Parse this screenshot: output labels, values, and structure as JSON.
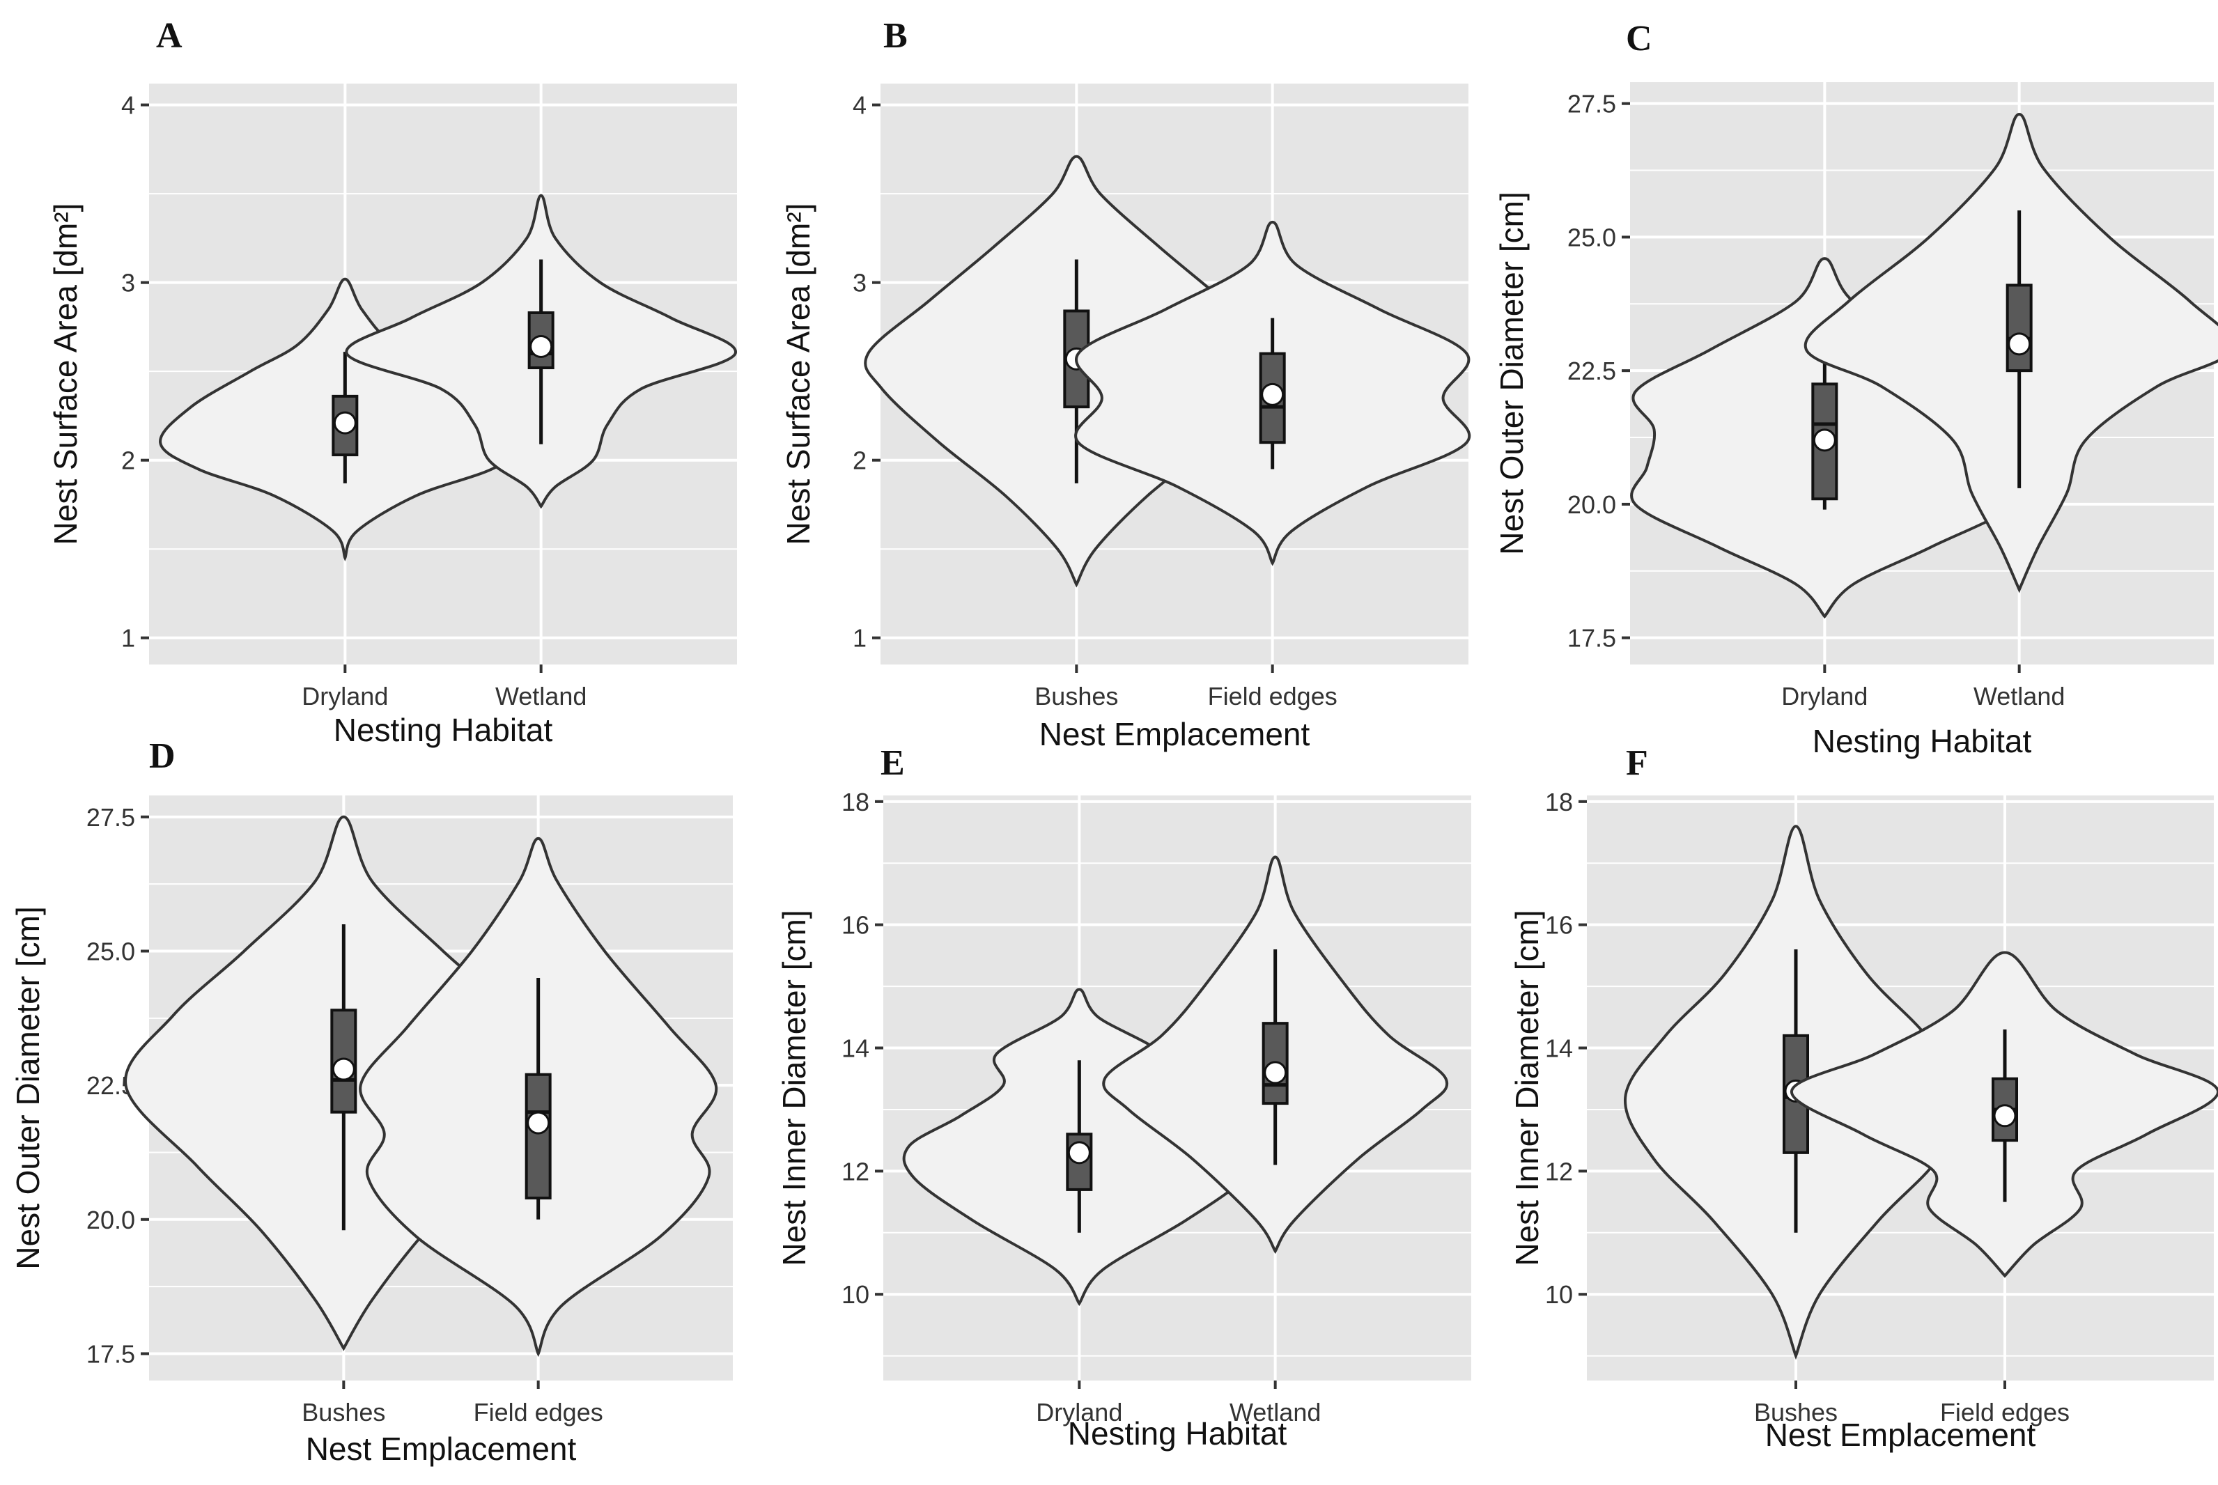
{
  "figure": {
    "panels": [
      "A",
      "B",
      "C",
      "D",
      "E",
      "F"
    ]
  },
  "colors": {
    "panel_bg": "#e5e5e5",
    "grid": "#ffffff",
    "violin_fill": "#f2f2f2",
    "violin_stroke": "#333333",
    "box_fill": "#595959",
    "box_stroke": "#111111",
    "mean_point": "#ffffff"
  },
  "chart_data": [
    {
      "type": "violin",
      "panel": "A",
      "xlabel": "Nesting Habitat",
      "ylabel": "Nest Surface Area [dm²]",
      "ylim": [
        0.85,
        4.12
      ],
      "yticks": [
        "1",
        "2",
        "3",
        "4"
      ],
      "categories": [
        "Dryland",
        "Wetland"
      ],
      "groups": [
        {
          "name": "Dryland",
          "min": 1.87,
          "q1": 2.03,
          "median": 2.2,
          "q3": 2.36,
          "max": 2.61,
          "mean": 2.21,
          "violin_min": 1.45,
          "violin_max": 3.02,
          "density": [
            [
              1.45,
              0.0
            ],
            [
              1.6,
              0.05
            ],
            [
              1.8,
              0.3
            ],
            [
              1.95,
              0.62
            ],
            [
              2.1,
              0.78
            ],
            [
              2.3,
              0.65
            ],
            [
              2.5,
              0.4
            ],
            [
              2.65,
              0.2
            ],
            [
              2.85,
              0.07
            ],
            [
              3.02,
              0.0
            ]
          ]
        },
        {
          "name": "Wetland",
          "min": 2.09,
          "q1": 2.52,
          "median": 2.6,
          "q3": 2.83,
          "max": 3.13,
          "mean": 2.64,
          "violin_min": 1.74,
          "violin_max": 3.49,
          "density": [
            [
              1.74,
              0.0
            ],
            [
              1.85,
              0.06
            ],
            [
              2.0,
              0.22
            ],
            [
              2.2,
              0.28
            ],
            [
              2.4,
              0.42
            ],
            [
              2.6,
              0.82
            ],
            [
              2.8,
              0.55
            ],
            [
              3.0,
              0.25
            ],
            [
              3.25,
              0.06
            ],
            [
              3.49,
              0.0
            ]
          ]
        }
      ]
    },
    {
      "type": "violin",
      "panel": "B",
      "xlabel": "Nest Emplacement",
      "ylabel": "Nest Surface Area [dm²]",
      "ylim": [
        0.85,
        4.12
      ],
      "yticks": [
        "1",
        "2",
        "3",
        "4"
      ],
      "categories": [
        "Bushes",
        "Field edges"
      ],
      "groups": [
        {
          "name": "Bushes",
          "min": 1.87,
          "q1": 2.3,
          "median": 2.55,
          "q3": 2.84,
          "max": 3.13,
          "mean": 2.57,
          "violin_min": 1.3,
          "violin_max": 3.71,
          "density": [
            [
              1.3,
              0.0
            ],
            [
              1.5,
              0.08
            ],
            [
              1.8,
              0.3
            ],
            [
              2.1,
              0.58
            ],
            [
              2.4,
              0.82
            ],
            [
              2.6,
              0.88
            ],
            [
              2.9,
              0.62
            ],
            [
              3.2,
              0.35
            ],
            [
              3.5,
              0.1
            ],
            [
              3.71,
              0.0
            ]
          ]
        },
        {
          "name": "Field edges",
          "min": 1.95,
          "q1": 2.1,
          "median": 2.3,
          "q3": 2.6,
          "max": 2.8,
          "mean": 2.37,
          "violin_min": 1.42,
          "violin_max": 3.34,
          "density": [
            [
              1.42,
              0.0
            ],
            [
              1.6,
              0.08
            ],
            [
              1.85,
              0.4
            ],
            [
              2.1,
              0.82
            ],
            [
              2.35,
              0.72
            ],
            [
              2.6,
              0.82
            ],
            [
              2.85,
              0.45
            ],
            [
              3.1,
              0.1
            ],
            [
              3.34,
              0.0
            ]
          ]
        }
      ]
    },
    {
      "type": "violin",
      "panel": "C",
      "xlabel": "Nesting Habitat",
      "ylabel": "Nest Outer Diameter [cm]",
      "ylim": [
        17.0,
        27.9
      ],
      "yticks": [
        "17.5",
        "20.0",
        "22.5",
        "25.0",
        "27.5"
      ],
      "categories": [
        "Dryland",
        "Wetland"
      ],
      "groups": [
        {
          "name": "Dryland",
          "min": 19.9,
          "q1": 20.1,
          "median": 21.5,
          "q3": 22.25,
          "max": 22.7,
          "mean": 21.2,
          "violin_min": 17.9,
          "violin_max": 24.6,
          "density": [
            [
              17.9,
              0.0
            ],
            [
              18.5,
              0.12
            ],
            [
              19.2,
              0.45
            ],
            [
              20.0,
              0.8
            ],
            [
              20.7,
              0.75
            ],
            [
              21.4,
              0.72
            ],
            [
              22.1,
              0.8
            ],
            [
              22.9,
              0.48
            ],
            [
              23.8,
              0.12
            ],
            [
              24.6,
              0.0
            ]
          ]
        },
        {
          "name": "Wetland",
          "min": 20.3,
          "q1": 22.5,
          "median": 23.1,
          "q3": 24.1,
          "max": 25.5,
          "mean": 23.0,
          "violin_min": 18.4,
          "violin_max": 27.3,
          "density": [
            [
              18.4,
              0.0
            ],
            [
              19.2,
              0.08
            ],
            [
              20.2,
              0.2
            ],
            [
              21.2,
              0.28
            ],
            [
              22.2,
              0.58
            ],
            [
              22.9,
              0.9
            ],
            [
              23.8,
              0.72
            ],
            [
              25.0,
              0.38
            ],
            [
              26.3,
              0.1
            ],
            [
              27.3,
              0.0
            ]
          ]
        }
      ]
    },
    {
      "type": "violin",
      "panel": "D",
      "xlabel": "Nest Emplacement",
      "ylabel": "Nest Outer Diameter [cm]",
      "ylim": [
        17.0,
        27.9
      ],
      "yticks": [
        "17.5",
        "20.0",
        "22.5",
        "25.0",
        "27.5"
      ],
      "categories": [
        "Bushes",
        "Field edges"
      ],
      "groups": [
        {
          "name": "Bushes",
          "min": 19.8,
          "q1": 22.0,
          "median": 22.6,
          "q3": 23.9,
          "max": 25.5,
          "mean": 22.8,
          "violin_min": 17.6,
          "violin_max": 27.5,
          "density": [
            [
              17.6,
              0.0
            ],
            [
              18.5,
              0.12
            ],
            [
              19.8,
              0.35
            ],
            [
              21.0,
              0.62
            ],
            [
              22.5,
              0.92
            ],
            [
              23.8,
              0.72
            ],
            [
              25.0,
              0.42
            ],
            [
              26.3,
              0.12
            ],
            [
              27.5,
              0.0
            ]
          ]
        },
        {
          "name": "Field edges",
          "min": 20.0,
          "q1": 20.4,
          "median": 22.0,
          "q3": 22.7,
          "max": 24.5,
          "mean": 21.8,
          "violin_min": 17.5,
          "violin_max": 27.1,
          "density": [
            [
              17.5,
              0.0
            ],
            [
              18.4,
              0.1
            ],
            [
              19.7,
              0.52
            ],
            [
              20.8,
              0.72
            ],
            [
              21.6,
              0.65
            ],
            [
              22.5,
              0.75
            ],
            [
              23.6,
              0.55
            ],
            [
              25.0,
              0.28
            ],
            [
              26.3,
              0.08
            ],
            [
              27.1,
              0.0
            ]
          ]
        }
      ]
    },
    {
      "type": "violin",
      "panel": "E",
      "xlabel": "Nesting Habitat",
      "ylabel": "Nest Inner Diameter [cm]",
      "ylim": [
        8.6,
        18.1
      ],
      "yticks": [
        "10",
        "12",
        "14",
        "16",
        "18"
      ],
      "categories": [
        "Dryland",
        "Wetland"
      ],
      "groups": [
        {
          "name": "Dryland",
          "min": 11.0,
          "q1": 11.7,
          "median": 12.3,
          "q3": 12.6,
          "max": 13.8,
          "mean": 12.3,
          "violin_min": 9.85,
          "violin_max": 14.95,
          "density": [
            [
              9.85,
              0.0
            ],
            [
              10.4,
              0.1
            ],
            [
              11.2,
              0.45
            ],
            [
              11.9,
              0.7
            ],
            [
              12.4,
              0.72
            ],
            [
              12.9,
              0.5
            ],
            [
              13.4,
              0.32
            ],
            [
              13.9,
              0.35
            ],
            [
              14.5,
              0.08
            ],
            [
              14.95,
              0.0
            ]
          ]
        },
        {
          "name": "Wetland",
          "min": 12.1,
          "q1": 13.1,
          "median": 13.4,
          "q3": 14.4,
          "max": 15.6,
          "mean": 13.6,
          "violin_min": 10.7,
          "violin_max": 17.1,
          "density": [
            [
              10.7,
              0.0
            ],
            [
              11.2,
              0.08
            ],
            [
              12.2,
              0.35
            ],
            [
              13.0,
              0.62
            ],
            [
              13.5,
              0.72
            ],
            [
              14.2,
              0.48
            ],
            [
              15.0,
              0.3
            ],
            [
              16.2,
              0.08
            ],
            [
              17.1,
              0.0
            ]
          ]
        }
      ]
    },
    {
      "type": "violin",
      "panel": "F",
      "xlabel": "Nest Emplacement",
      "ylabel": "Nest Inner Diameter [cm]",
      "ylim": [
        8.6,
        18.1
      ],
      "yticks": [
        "10",
        "12",
        "14",
        "16",
        "18"
      ],
      "categories": [
        "Bushes",
        "Field edges"
      ],
      "groups": [
        {
          "name": "Bushes",
          "min": 11.0,
          "q1": 12.3,
          "median": 13.2,
          "q3": 14.2,
          "max": 15.6,
          "mean": 13.3,
          "violin_min": 9.0,
          "violin_max": 17.6,
          "density": [
            [
              9.0,
              0.0
            ],
            [
              10.0,
              0.1
            ],
            [
              11.2,
              0.35
            ],
            [
              12.2,
              0.6
            ],
            [
              13.2,
              0.72
            ],
            [
              14.2,
              0.55
            ],
            [
              15.2,
              0.3
            ],
            [
              16.4,
              0.1
            ],
            [
              17.6,
              0.0
            ]
          ]
        },
        {
          "name": "Field edges",
          "min": 11.5,
          "q1": 12.5,
          "median": 13.0,
          "q3": 13.5,
          "max": 14.3,
          "mean": 12.9,
          "violin_min": 10.3,
          "violin_max": 15.55,
          "density": [
            [
              10.3,
              0.0
            ],
            [
              10.8,
              0.12
            ],
            [
              11.4,
              0.32
            ],
            [
              12.0,
              0.3
            ],
            [
              12.6,
              0.6
            ],
            [
              13.3,
              0.9
            ],
            [
              13.9,
              0.55
            ],
            [
              14.6,
              0.22
            ],
            [
              15.55,
              0.0
            ]
          ]
        }
      ]
    }
  ]
}
